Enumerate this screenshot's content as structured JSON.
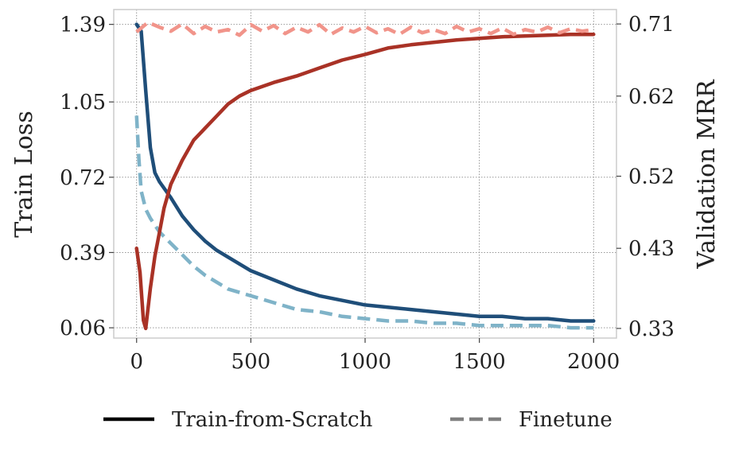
{
  "chart_data": {
    "type": "line",
    "title": "",
    "xlabel": "",
    "ylabel_left": "Train Loss",
    "ylabel_right": "Validation MRR",
    "xlim": [
      -100,
      2100
    ],
    "ylim_left": [
      0.015,
      1.455
    ],
    "ylim_right": [
      0.318,
      0.728
    ],
    "x_ticks": [
      0,
      500,
      1000,
      1500,
      2000
    ],
    "x_tick_labels": [
      "0",
      "500",
      "1000",
      "1500",
      "2000"
    ],
    "y_left_ticks": [
      0.06,
      0.39,
      0.72,
      1.05,
      1.39
    ],
    "y_left_tick_labels": [
      "0.06",
      "0.39",
      "0.72",
      "1.05",
      "1.39"
    ],
    "y_right_ticks": [
      0.33,
      0.43,
      0.52,
      0.62,
      0.71
    ],
    "y_right_tick_labels": [
      "0.33",
      "0.43",
      "0.52",
      "0.62",
      "0.71"
    ],
    "grid": true,
    "legend_position": "bottom-center",
    "legend": [
      {
        "label": "Train-from-Scratch",
        "style": "solid",
        "color": "#000000"
      },
      {
        "label": "Finetune",
        "style": "dashed",
        "color": "#808080"
      }
    ],
    "series": [
      {
        "name": "Train-from-Scratch (Train Loss)",
        "axis": "left",
        "style": "solid",
        "color": "#1f4e79",
        "x": [
          0,
          20,
          40,
          60,
          80,
          100,
          150,
          200,
          250,
          300,
          350,
          400,
          450,
          500,
          600,
          700,
          800,
          900,
          1000,
          1100,
          1200,
          1300,
          1400,
          1500,
          1600,
          1700,
          1800,
          1900,
          2000
        ],
        "y": [
          1.39,
          1.36,
          1.1,
          0.85,
          0.74,
          0.7,
          0.63,
          0.55,
          0.49,
          0.44,
          0.4,
          0.37,
          0.34,
          0.31,
          0.27,
          0.23,
          0.2,
          0.18,
          0.16,
          0.15,
          0.14,
          0.13,
          0.12,
          0.11,
          0.11,
          0.1,
          0.1,
          0.09,
          0.09
        ]
      },
      {
        "name": "Finetune (Train Loss)",
        "axis": "left",
        "style": "dashed",
        "color": "#7fb3c8",
        "x": [
          0,
          10,
          20,
          40,
          60,
          80,
          100,
          150,
          200,
          250,
          300,
          350,
          400,
          500,
          600,
          700,
          800,
          900,
          1000,
          1100,
          1200,
          1300,
          1400,
          1500,
          1600,
          1700,
          1800,
          1900,
          2000
        ],
        "y": [
          0.99,
          0.8,
          0.66,
          0.58,
          0.54,
          0.51,
          0.48,
          0.43,
          0.38,
          0.33,
          0.29,
          0.26,
          0.23,
          0.2,
          0.17,
          0.14,
          0.13,
          0.11,
          0.1,
          0.09,
          0.09,
          0.08,
          0.08,
          0.07,
          0.07,
          0.07,
          0.07,
          0.06,
          0.06
        ]
      },
      {
        "name": "Train-from-Scratch (Validation MRR)",
        "axis": "right",
        "style": "solid",
        "color": "#a93226",
        "x": [
          0,
          15,
          30,
          40,
          60,
          80,
          100,
          120,
          150,
          200,
          250,
          300,
          350,
          400,
          450,
          500,
          600,
          700,
          800,
          900,
          1000,
          1100,
          1200,
          1300,
          1400,
          1500,
          1600,
          1700,
          1800,
          1900,
          2000
        ],
        "y": [
          0.43,
          0.4,
          0.34,
          0.33,
          0.38,
          0.42,
          0.45,
          0.48,
          0.51,
          0.54,
          0.565,
          0.58,
          0.595,
          0.61,
          0.62,
          0.627,
          0.637,
          0.645,
          0.655,
          0.665,
          0.672,
          0.68,
          0.684,
          0.687,
          0.69,
          0.692,
          0.694,
          0.695,
          0.696,
          0.697,
          0.697
        ]
      },
      {
        "name": "Finetune (Validation MRR)",
        "axis": "right",
        "style": "dashed",
        "color": "#f1948a",
        "x": [
          0,
          50,
          100,
          150,
          200,
          250,
          300,
          350,
          400,
          450,
          500,
          550,
          600,
          650,
          700,
          750,
          800,
          850,
          900,
          950,
          1000,
          1050,
          1100,
          1150,
          1200,
          1250,
          1300,
          1350,
          1400,
          1450,
          1500,
          1550,
          1600,
          1650,
          1700,
          1750,
          1800,
          1850,
          1900,
          1950,
          2000
        ],
        "y": [
          0.7,
          0.712,
          0.706,
          0.701,
          0.71,
          0.698,
          0.707,
          0.7,
          0.703,
          0.696,
          0.709,
          0.701,
          0.708,
          0.698,
          0.706,
          0.7,
          0.709,
          0.697,
          0.705,
          0.7,
          0.707,
          0.699,
          0.704,
          0.697,
          0.706,
          0.699,
          0.703,
          0.698,
          0.707,
          0.7,
          0.704,
          0.698,
          0.705,
          0.697,
          0.703,
          0.7,
          0.706,
          0.699,
          0.704,
          0.701,
          0.703
        ]
      }
    ]
  }
}
